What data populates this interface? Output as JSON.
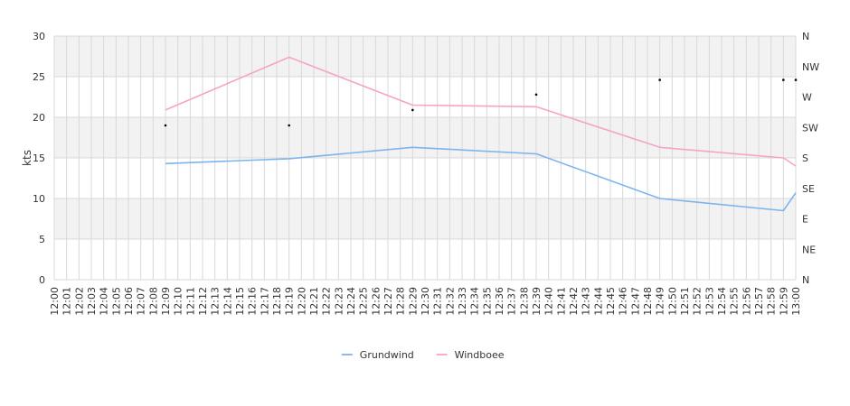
{
  "chart_data": {
    "type": "line",
    "ylabel": "kts",
    "ylim": [
      0,
      30
    ],
    "yticks": [
      0,
      5,
      10,
      15,
      20,
      25,
      30
    ],
    "x_start": "12:00",
    "x_end": "13:00",
    "x_ticks": [
      "12:00",
      "12:01",
      "12:02",
      "12:03",
      "12:04",
      "12:05",
      "12:06",
      "12:07",
      "12:08",
      "12:09",
      "12:10",
      "12:11",
      "12:12",
      "12:13",
      "12:14",
      "12:15",
      "12:16",
      "12:17",
      "12:18",
      "12:19",
      "12:20",
      "12:21",
      "12:22",
      "12:23",
      "12:24",
      "12:25",
      "12:26",
      "12:27",
      "12:28",
      "12:29",
      "12:30",
      "12:31",
      "12:32",
      "12:33",
      "12:34",
      "12:35",
      "12:36",
      "12:37",
      "12:38",
      "12:39",
      "12:40",
      "12:41",
      "12:42",
      "12:43",
      "12:44",
      "12:45",
      "12:46",
      "12:47",
      "12:48",
      "12:49",
      "12:50",
      "12:51",
      "12:52",
      "12:53",
      "12:54",
      "12:55",
      "12:56",
      "12:57",
      "12:58",
      "12:59",
      "13:00"
    ],
    "y2_labels": [
      "N",
      "NE",
      "E",
      "SE",
      "S",
      "SW",
      "W",
      "NW",
      "N"
    ],
    "grid": true,
    "legend_position": "bottom-center",
    "series": [
      {
        "name": "Grundwind",
        "color": "#7cb5ec",
        "points": [
          [
            "12:09",
            14.3
          ],
          [
            "12:19",
            14.9
          ],
          [
            "12:29",
            16.3
          ],
          [
            "12:39",
            15.5
          ],
          [
            "12:49",
            10.0
          ],
          [
            "12:59",
            8.5
          ],
          [
            "13:00",
            10.7
          ]
        ]
      },
      {
        "name": "Windboee",
        "color": "#f7a3c8",
        "points": [
          [
            "12:09",
            20.9
          ],
          [
            "12:19",
            27.4
          ],
          [
            "12:29",
            21.5
          ],
          [
            "12:39",
            21.3
          ],
          [
            "12:49",
            16.3
          ],
          [
            "12:59",
            15.0
          ],
          [
            "13:00",
            14.0
          ]
        ]
      },
      {
        "name": "",
        "type": "scatter",
        "color": "#000000",
        "points": [
          [
            "12:09",
            19.0
          ],
          [
            "12:19",
            19.0
          ],
          [
            "12:29",
            20.9
          ],
          [
            "12:39",
            22.8
          ],
          [
            "12:49",
            24.6
          ],
          [
            "12:59",
            24.6
          ],
          [
            "13:00",
            24.6
          ]
        ]
      }
    ]
  }
}
